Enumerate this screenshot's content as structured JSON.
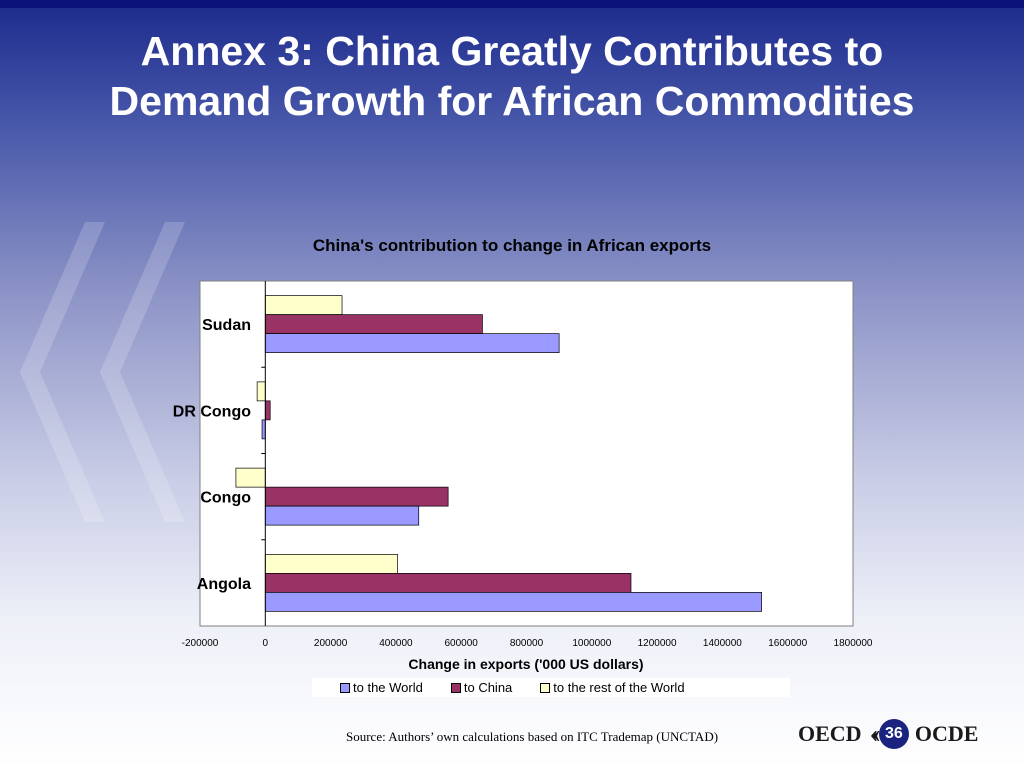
{
  "slide": {
    "title_line1": "Annex 3: China Greatly Contributes to",
    "title_line2": "Demand Growth for African Commodities",
    "source": "Source: Authors’ own calculations based on ITC Trademap (UNCTAD)",
    "page_number": "36",
    "logo_left": "OECD",
    "logo_right": "OCDE"
  },
  "chart_data": {
    "type": "bar",
    "orientation": "horizontal",
    "title": "China's contribution to change in African exports",
    "xlabel": "Change in exports ('000 US dollars)",
    "ylabel": "",
    "xlim": [
      -200000,
      1800000
    ],
    "xticks": [
      -200000,
      0,
      200000,
      400000,
      600000,
      800000,
      1000000,
      1200000,
      1400000,
      1600000,
      1800000
    ],
    "categories": [
      "Sudan",
      "DR Congo",
      "Congo",
      "Angola"
    ],
    "series": [
      {
        "name": "to the World",
        "color": "#9999ff",
        "values": [
          900000,
          -10000,
          470000,
          1520000
        ]
      },
      {
        "name": "to China",
        "color": "#993366",
        "values": [
          665000,
          15000,
          560000,
          1120000
        ]
      },
      {
        "name": "to the rest of the World",
        "color": "#ffffcc",
        "values": [
          235000,
          -25000,
          -90000,
          405000
        ]
      }
    ],
    "grid": false,
    "legend_position": "bottom"
  }
}
